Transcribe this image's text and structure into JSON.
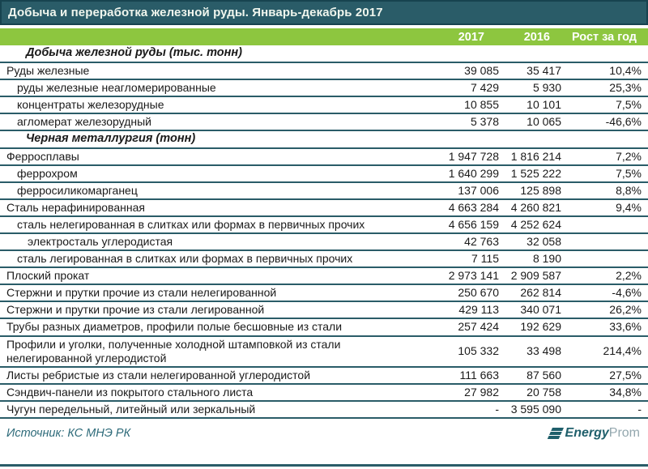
{
  "title_bar": {
    "title": "Добыча и переработка железной руды. Январь-декабрь 2017"
  },
  "table": {
    "columns": {
      "year_2017": "2017",
      "year_2016": "2016",
      "growth": "Рост за год"
    },
    "rows": [
      {
        "type": "section",
        "label": "Добыча железной руды (тыс. тонн)"
      },
      {
        "type": "data",
        "indent": 0,
        "label": "Руды железные",
        "y2017": "39 085",
        "y2016": "35 417",
        "growth": "10,4%"
      },
      {
        "type": "data",
        "indent": 1,
        "label": "руды железные неагломерированные",
        "y2017": "7 429",
        "y2016": "5 930",
        "growth": "25,3%"
      },
      {
        "type": "data",
        "indent": 1,
        "label": "концентраты железорудные",
        "y2017": "10 855",
        "y2016": "10 101",
        "growth": "7,5%"
      },
      {
        "type": "data",
        "indent": 1,
        "label": "агломерат железорудный",
        "y2017": "5 378",
        "y2016": "10 065",
        "growth": "-46,6%"
      },
      {
        "type": "section",
        "label": "Черная металлургия (тонн)"
      },
      {
        "type": "data",
        "indent": 0,
        "label": "Ферросплавы",
        "y2017": "1 947 728",
        "y2016": "1 816 214",
        "growth": "7,2%"
      },
      {
        "type": "data",
        "indent": 1,
        "label": "феррохром",
        "y2017": "1 640 299",
        "y2016": "1 525 222",
        "growth": "7,5%"
      },
      {
        "type": "data",
        "indent": 1,
        "label": "ферросиликомарганец",
        "y2017": "137 006",
        "y2016": "125 898",
        "growth": "8,8%"
      },
      {
        "type": "data",
        "indent": 0,
        "label": "Сталь нерафинированная",
        "y2017": "4 663 284",
        "y2016": "4 260 821",
        "growth": "9,4%"
      },
      {
        "type": "data",
        "indent": 1,
        "label": "сталь нелегированная в слитках или формах в первичных прочих",
        "y2017": "4 656 159",
        "y2016": "4 252 624",
        "growth": ""
      },
      {
        "type": "data",
        "indent": 2,
        "label": "электросталь углеродистая",
        "y2017": "42 763",
        "y2016": "32 058",
        "growth": ""
      },
      {
        "type": "data",
        "indent": 1,
        "label": "сталь легированная в слитках или формах в  первичных прочих",
        "y2017": "7 115",
        "y2016": "8 190",
        "growth": ""
      },
      {
        "type": "data",
        "indent": 0,
        "label": "Плоский прокат",
        "y2017": "2 973 141",
        "y2016": "2 909 587",
        "growth": "2,2%"
      },
      {
        "type": "data",
        "indent": 0,
        "label": "Стержни и прутки прочие из стали нелегированной",
        "y2017": "250 670",
        "y2016": "262 814",
        "growth": "-4,6%"
      },
      {
        "type": "data",
        "indent": 0,
        "label": "Стержни и прутки прочие из стали легированной",
        "y2017": "429 113",
        "y2016": "340 071",
        "growth": "26,2%"
      },
      {
        "type": "data",
        "indent": 0,
        "label": "Трубы разных диаметров, профили полые бесшовные из стали",
        "y2017": "257 424",
        "y2016": "192 629",
        "growth": "33,6%"
      },
      {
        "type": "data",
        "indent": 0,
        "label": "Профили и уголки, полученные холодной штамповкой из стали\nнелегированной  углеродистой",
        "y2017": "105 332",
        "y2016": "33 498",
        "growth": "214,4%"
      },
      {
        "type": "data",
        "indent": 0,
        "label": "Листы ребристые из стали нелегированной углеродистой",
        "y2017": "111 663",
        "y2016": "87 560",
        "growth": "27,5%"
      },
      {
        "type": "data",
        "indent": 0,
        "label": "Сэндвич-панели из покрытого стального листа",
        "y2017": "27 982",
        "y2016": "20 758",
        "growth": "34,8%"
      },
      {
        "type": "data",
        "indent": 0,
        "label": "Чугун передельный, литейный или зеркальный",
        "y2017": "-",
        "y2016": "3 595 090",
        "growth": "-"
      }
    ]
  },
  "footer": {
    "source": "Источник: КС МНЭ РК",
    "logo": {
      "bold": "Energy",
      "light": "Prom"
    }
  },
  "colors": {
    "title_bg": "#2a5c68",
    "title_border": "#17434f",
    "header_green": "#8dc63f",
    "rule": "#2a5c68",
    "source_text": "#2e6b7a",
    "logo_dark": "#1f5f6b",
    "logo_light": "#93a7ae"
  }
}
